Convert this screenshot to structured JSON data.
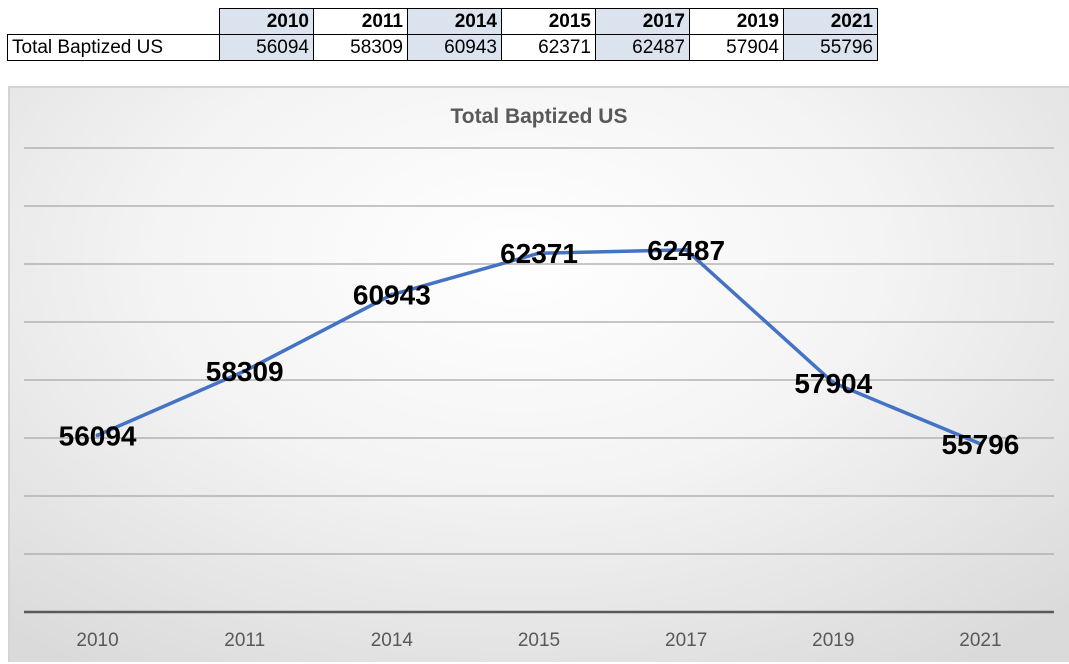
{
  "table": {
    "years": [
      "2010",
      "2011",
      "2014",
      "2015",
      "2017",
      "2019",
      "2021"
    ],
    "row_label": "Total Baptized US",
    "values": [
      "56094",
      "58309",
      "60943",
      "62371",
      "62487",
      "57904",
      "55796"
    ]
  },
  "colors": {
    "series_line": "#4472c4",
    "table_shade": "#dbe3ef"
  },
  "chart_data": {
    "type": "line",
    "title": "Total Baptized US",
    "categories": [
      "2010",
      "2011",
      "2014",
      "2015",
      "2017",
      "2019",
      "2021"
    ],
    "series": [
      {
        "name": "Total Baptized US",
        "values": [
          56094,
          58309,
          60943,
          62371,
          62487,
          57904,
          55796
        ]
      }
    ],
    "data_labels": [
      "56094",
      "58309",
      "60943",
      "62371",
      "62487",
      "57904",
      "55796"
    ],
    "xlabel": "",
    "ylabel": "",
    "ylim": [
      50000,
      66000
    ],
    "y_axis_labels_shown": false,
    "grid": true,
    "legend": "none"
  }
}
